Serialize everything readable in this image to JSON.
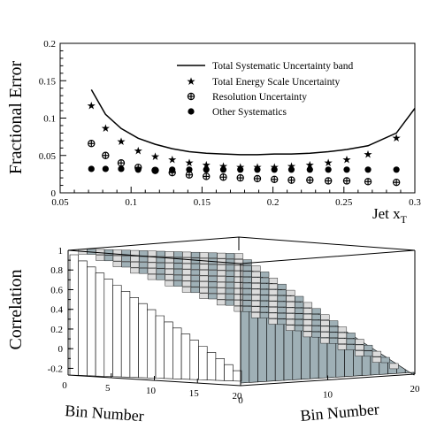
{
  "chart_data": [
    {
      "type": "scatter",
      "xlabel": "Jet x",
      "xlabel_sub": "T",
      "ylabel": "Fractional Error",
      "xlim": [
        0.05,
        0.3
      ],
      "ylim": [
        0,
        0.2
      ],
      "xticks": [
        "0.05",
        "0.1",
        "0.15",
        "0.2",
        "0.25",
        "0.3"
      ],
      "yticks": [
        "0",
        "0.05",
        "0.1",
        "0.15",
        "0.2"
      ],
      "legend_position": "top-right",
      "x": [
        0.072,
        0.082,
        0.093,
        0.105,
        0.117,
        0.129,
        0.141,
        0.153,
        0.165,
        0.177,
        0.189,
        0.201,
        0.213,
        0.226,
        0.239,
        0.252,
        0.267,
        0.287
      ],
      "band": {
        "name": "Total Systematic Uncertainty band",
        "x": [
          0.072,
          0.082,
          0.093,
          0.105,
          0.117,
          0.129,
          0.141,
          0.153,
          0.165,
          0.177,
          0.189,
          0.201,
          0.213,
          0.226,
          0.239,
          0.252,
          0.267,
          0.287,
          0.3
        ],
        "values": [
          0.138,
          0.105,
          0.086,
          0.073,
          0.065,
          0.059,
          0.055,
          0.053,
          0.052,
          0.051,
          0.051,
          0.052,
          0.052,
          0.053,
          0.055,
          0.058,
          0.063,
          0.08,
          0.113
        ]
      },
      "series": [
        {
          "name": "Total Energy Scale Uncertainty",
          "marker": "star",
          "values": [
            0.117,
            0.087,
            0.069,
            0.057,
            0.049,
            0.045,
            0.041,
            0.038,
            0.036,
            0.035,
            0.035,
            0.035,
            0.036,
            0.038,
            0.041,
            0.045,
            0.052,
            0.074
          ]
        },
        {
          "name": "Resolution Uncertainty",
          "marker": "cross-circle",
          "values": [
            0.066,
            0.05,
            0.04,
            0.034,
            0.03,
            0.027,
            0.024,
            0.022,
            0.021,
            0.02,
            0.019,
            0.018,
            0.017,
            0.017,
            0.016,
            0.016,
            0.015,
            0.014
          ]
        },
        {
          "name": "Other Systematics",
          "marker": "circle",
          "values": [
            0.032,
            0.032,
            0.032,
            0.031,
            0.03,
            0.031,
            0.031,
            0.031,
            0.031,
            0.031,
            0.031,
            0.031,
            0.031,
            0.031,
            0.031,
            0.031,
            0.031,
            0.031
          ]
        }
      ]
    },
    {
      "type": "heatmap",
      "style": "3d-lego",
      "ylabel": "Correlation",
      "xlabel_left": "Bin Number",
      "xlabel_right": "Bin Number",
      "zlim": [
        -0.25,
        1
      ],
      "zticks": [
        "-0.2",
        "0",
        "0.2",
        "0.4",
        "0.6",
        "0.8",
        "1"
      ],
      "left_axis_ticks": [
        "0",
        "5",
        "10",
        "15",
        "20"
      ],
      "right_axis_ticks": [
        "0",
        "10",
        "20"
      ],
      "nbins": 20,
      "front_face_color": "#ffffff",
      "side_face_color": "#9fb0b6",
      "top_face_color": "#dcdcdc",
      "matrix_note": "correlation of bin i with bin j; diagonal = 1, off-diagonal high values"
    }
  ]
}
